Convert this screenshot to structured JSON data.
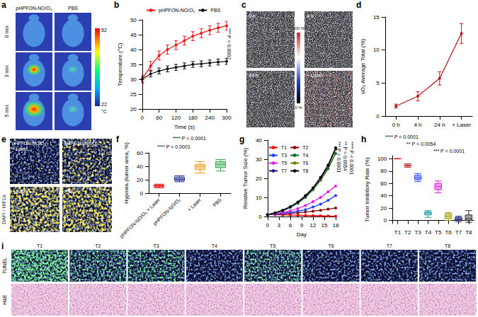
{
  "images": {
    "a": {
      "panel": "a",
      "columns": [
        "pHPFON-NO/O₂",
        "PBS"
      ],
      "rows": [
        "0 min",
        "3 min",
        "5 min"
      ],
      "colorbar": {
        "max": 52,
        "min": 22,
        "unit": "°C"
      }
    },
    "c": {
      "panel": "c",
      "frames": [
        "0 h",
        "4 h",
        "24 h",
        "+ Laser"
      ],
      "colorbar": {
        "max": "100 %",
        "min": "0 %"
      }
    },
    "e": {
      "panel": "e",
      "frames": [
        [
          "pHPFON-NO/O₂",
          "+ Laser"
        ],
        [
          "pHPFON-NO/O₂"
        ],
        [
          "+ Laser"
        ],
        [
          "PBS"
        ]
      ],
      "legend_text": "DAPI / HIF1α"
    },
    "i": {
      "panel": "i",
      "columns": [
        "T1",
        "T2",
        "T3",
        "T4",
        "T5",
        "T6",
        "T7",
        "T8"
      ],
      "rows": [
        "TUNEL",
        "H&E"
      ]
    }
  },
  "chart_data": [
    {
      "panel": "b",
      "type": "line",
      "x": [
        0,
        30,
        60,
        90,
        120,
        150,
        180,
        210,
        240,
        270,
        300
      ],
      "xlim": [
        0,
        300
      ],
      "xticks": [
        0,
        60,
        120,
        180,
        240,
        300
      ],
      "ylim": [
        20,
        50
      ],
      "yticks": [
        20,
        25,
        30,
        35,
        40,
        45,
        50
      ],
      "x_label": "Time (s)",
      "y_label": "Temperature (°C)",
      "legend": "upper left",
      "series": [
        {
          "name": "pHPFON-NO/O₂",
          "color": "#e8191f",
          "marker": "circle",
          "values": [
            30,
            34.5,
            38,
            40,
            41.5,
            43,
            44.5,
            45.5,
            46.5,
            47.3,
            48
          ],
          "errors": [
            1.5,
            1.5,
            1.5,
            1.5,
            1.5,
            1.5,
            1.5,
            1.5,
            1.5,
            1.5,
            1.5
          ]
        },
        {
          "name": "PBS",
          "color": "#111111",
          "marker": "circle",
          "values": [
            30,
            31.8,
            32.8,
            33.5,
            34,
            34.5,
            35,
            35.2,
            35.5,
            35.8,
            36
          ],
          "errors": [
            1,
            1,
            1,
            1,
            1,
            1,
            1,
            1,
            1,
            1,
            1
          ]
        }
      ],
      "annotations": [
        "*** P = 0.0002"
      ]
    },
    {
      "panel": "d",
      "type": "line",
      "categories": [
        "0 h",
        "4 h",
        "24 h",
        "+ Laser"
      ],
      "values": [
        1.5,
        3,
        5.7,
        12.5
      ],
      "errors": [
        0.3,
        0.7,
        1,
        1.5
      ],
      "color": "#c0171d",
      "marker": "circle",
      "ylim": [
        0,
        15
      ],
      "yticks": [
        0,
        5,
        10,
        15
      ],
      "y_label": "sO₂ Average Total (%)"
    },
    {
      "panel": "f",
      "type": "boxplot",
      "categories": [
        "pHPFON-NO/O₂ + Laser",
        "pHPFON-NO/O₂",
        "+ Laser",
        "PBS"
      ],
      "values": [
        [
          8,
          9.5,
          11,
          12,
          13.5
        ],
        [
          17,
          19,
          21,
          24,
          26
        ],
        [
          30,
          35,
          40,
          43,
          47
        ],
        [
          33,
          38,
          43,
          47,
          50
        ]
      ],
      "colors": [
        "#e8191f",
        "#1f2f8f",
        "#f0a020",
        "#30b050"
      ],
      "ylim": [
        0,
        60
      ],
      "yticks": [
        0,
        20,
        40,
        60
      ],
      "y_label": "Hypoxia (tumor area, %)",
      "annotations": [
        "**** P < 0.0001",
        "**** P < 0.0001"
      ]
    },
    {
      "panel": "g",
      "type": "line",
      "x": [
        0,
        2,
        4,
        6,
        8,
        10,
        12,
        14,
        16,
        18
      ],
      "xlim": [
        0,
        18
      ],
      "xticks": [
        0,
        3,
        6,
        9,
        12,
        15,
        18
      ],
      "ylim": [
        0,
        40
      ],
      "yticks": [
        0,
        10,
        20,
        30,
        40
      ],
      "x_label": "Day",
      "y_label": "Relative Tumor Size (%)",
      "legend": "upper left",
      "series": [
        {
          "name": "T1",
          "color": "#ff0000",
          "marker": "circle",
          "values": [
            1,
            1,
            0.9,
            0.8,
            0.7,
            0.6,
            0.5,
            0.4,
            0.3,
            0.2
          ]
        },
        {
          "name": "T2",
          "color": "#8b0000",
          "marker": "circle",
          "values": [
            1,
            1.2,
            1.4,
            1.7,
            2,
            2.4,
            2.8,
            3.3,
            3.9,
            4.5
          ]
        },
        {
          "name": "T3",
          "color": "#1f3fff",
          "marker": "circle",
          "values": [
            1,
            1.3,
            1.7,
            2.2,
            2.8,
            3.6,
            5,
            6.5,
            8.5,
            11
          ]
        },
        {
          "name": "T4",
          "color": "#0b6623",
          "marker": "circle",
          "values": [
            1,
            1.8,
            3,
            4.8,
            7,
            10,
            14,
            19,
            25,
            33
          ]
        },
        {
          "name": "T5",
          "color": "#e020e0",
          "marker": "circle",
          "values": [
            1,
            1.5,
            2.2,
            3,
            4.2,
            5.8,
            7.8,
            10,
            13,
            16
          ]
        },
        {
          "name": "T6",
          "color": "#7a7a00",
          "marker": "circle",
          "values": [
            1,
            1.9,
            3.2,
            5,
            7.3,
            10.5,
            14.5,
            19.5,
            26,
            35
          ]
        },
        {
          "name": "T7",
          "color": "#1a1a80",
          "marker": "circle",
          "values": [
            1,
            1.9,
            3.2,
            5,
            7.4,
            10.6,
            14.8,
            20,
            26.5,
            35.5
          ]
        },
        {
          "name": "T8",
          "color": "#000000",
          "marker": "circle",
          "values": [
            1,
            2,
            3.3,
            5.2,
            7.6,
            11,
            15,
            20.5,
            27,
            36
          ]
        }
      ],
      "annotations": [
        "*** P = 0.0001",
        "** P = 0.0054",
        "**** P < 0.0001"
      ]
    },
    {
      "panel": "h",
      "type": "boxplot",
      "categories": [
        "T1",
        "T2",
        "T3",
        "T4",
        "T5",
        "T6",
        "T7",
        "T8"
      ],
      "values": [
        [
          100,
          100,
          100,
          100,
          100
        ],
        [
          86,
          88,
          89,
          90,
          92
        ],
        [
          63,
          66,
          69,
          73,
          76
        ],
        [
          5,
          9,
          12,
          14,
          16
        ],
        [
          45,
          50,
          55,
          60,
          64
        ],
        [
          0,
          3,
          7,
          11,
          13
        ],
        [
          -2,
          1,
          3,
          5,
          7
        ],
        [
          -3,
          0,
          3,
          9,
          16
        ]
      ],
      "colors": [
        "#ff0000",
        "#c03030",
        "#3050ff",
        "#20a0a0",
        "#e020e0",
        "#a0a000",
        "#202080",
        "#303030"
      ],
      "ylim": [
        -5,
        105
      ],
      "yticks": [
        0,
        20,
        40,
        60,
        80,
        100
      ],
      "y_label": "Tumor Inhibitory Rate (%)",
      "annotations": [
        "**** P < 0.0001",
        "** P = 0.0054",
        "*** P = 0.0001"
      ]
    }
  ]
}
